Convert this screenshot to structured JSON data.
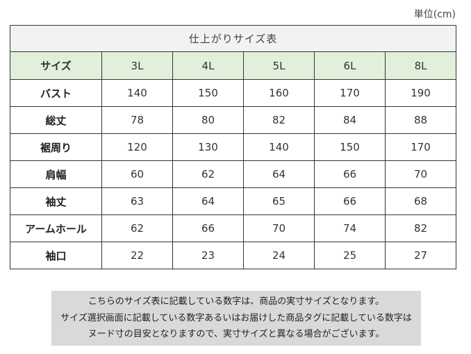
{
  "unit": "単位(cm)",
  "table": {
    "title": "仕上がりサイズ表",
    "header_label": "サイズ",
    "sizes": [
      "3L",
      "4L",
      "5L",
      "6L",
      "8L"
    ],
    "rows": [
      {
        "label": "バスト",
        "values": [
          "140",
          "150",
          "160",
          "170",
          "190"
        ]
      },
      {
        "label": "総丈",
        "values": [
          "78",
          "80",
          "82",
          "84",
          "88"
        ]
      },
      {
        "label": "裾周り",
        "values": [
          "120",
          "130",
          "140",
          "150",
          "170"
        ]
      },
      {
        "label": "肩幅",
        "values": [
          "60",
          "62",
          "64",
          "66",
          "70"
        ]
      },
      {
        "label": "袖丈",
        "values": [
          "63",
          "64",
          "65",
          "66",
          "68"
        ]
      },
      {
        "label": "アームホール",
        "values": [
          "62",
          "66",
          "70",
          "74",
          "82"
        ]
      },
      {
        "label": "袖口",
        "values": [
          "22",
          "23",
          "24",
          "25",
          "27"
        ]
      }
    ]
  },
  "note": {
    "lines": [
      "こちらのサイズ表に記載している数字は、商品の実寸サイズとなります。",
      "サイズ選択画面に記載している数字あるいはお届けした商品タグに記載している数字は",
      "ヌード寸の目安となりますので、実寸サイズと異なる場合がございます。"
    ]
  }
}
